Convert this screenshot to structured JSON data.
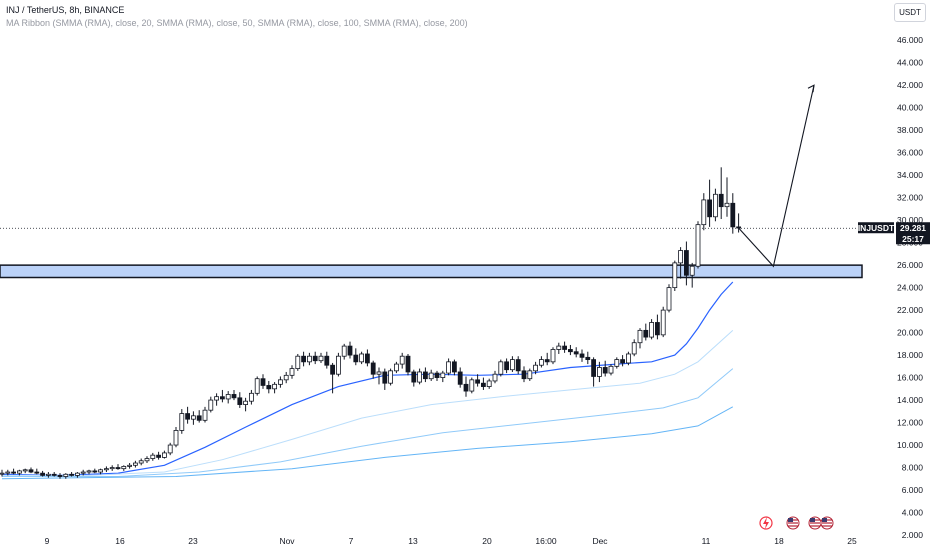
{
  "header": {
    "title": "INJ / TetherUS, 8h, BINANCE",
    "indicator": "MA Ribbon (SMMA (RMA), close, 20, SMMA (RMA), close, 50, SMMA (RMA), close, 100, SMMA (RMA), close, 200)",
    "currency": "USDT"
  },
  "price_tag": {
    "symbol": "INJUSDT",
    "price": "29.281",
    "countdown": "25:17"
  },
  "colors": {
    "up": "#131722",
    "down": "#131722",
    "ma20": "#2962ff",
    "ma50": "#bbdefb",
    "ma100": "#90caf9",
    "ma200": "#64b5f6",
    "zone": "#bbd2f8",
    "zone_border": "#131722"
  },
  "icons": [
    "bolt-icon",
    "us-flag-icon",
    "us-flag-icon",
    "us-flag-icon"
  ],
  "chart_data": {
    "type": "candlestick",
    "ylim": [
      2,
      47
    ],
    "y_ticks": [
      "2.000",
      "4.000",
      "6.000",
      "8.000",
      "10.000",
      "12.000",
      "14.000",
      "16.000",
      "18.000",
      "20.000",
      "22.000",
      "24.000",
      "26.000",
      "28.000",
      "30.000",
      "32.000",
      "34.000",
      "36.000",
      "38.000",
      "40.000",
      "42.000",
      "44.000",
      "46.000"
    ],
    "x_ticks": [
      "9",
      "16",
      "23",
      "Nov",
      "7",
      "13",
      "20",
      "16:00",
      "Dec",
      "11",
      "18",
      "25"
    ],
    "grid": false,
    "last_price": 29.281,
    "support_zone": [
      24.9,
      26.0
    ],
    "projection": [
      [
        0,
        29.3
      ],
      [
        6,
        25.9
      ],
      [
        13,
        42.0
      ]
    ],
    "candles": [
      {
        "o": 7.45,
        "h": 7.8,
        "l": 7.2,
        "c": 7.5
      },
      {
        "o": 7.5,
        "h": 7.8,
        "l": 7.3,
        "c": 7.6
      },
      {
        "o": 7.6,
        "h": 7.9,
        "l": 7.4,
        "c": 7.5
      },
      {
        "o": 7.5,
        "h": 7.8,
        "l": 7.3,
        "c": 7.7
      },
      {
        "o": 7.7,
        "h": 7.9,
        "l": 7.5,
        "c": 7.8
      },
      {
        "o": 7.8,
        "h": 8.0,
        "l": 7.5,
        "c": 7.6
      },
      {
        "o": 7.6,
        "h": 7.9,
        "l": 7.4,
        "c": 7.5
      },
      {
        "o": 7.5,
        "h": 7.7,
        "l": 7.2,
        "c": 7.3
      },
      {
        "o": 7.3,
        "h": 7.6,
        "l": 7.1,
        "c": 7.4
      },
      {
        "o": 7.4,
        "h": 7.6,
        "l": 7.2,
        "c": 7.3
      },
      {
        "o": 7.3,
        "h": 7.5,
        "l": 7.0,
        "c": 7.2
      },
      {
        "o": 7.2,
        "h": 7.5,
        "l": 7.0,
        "c": 7.4
      },
      {
        "o": 7.4,
        "h": 7.6,
        "l": 7.2,
        "c": 7.3
      },
      {
        "o": 7.3,
        "h": 7.6,
        "l": 7.1,
        "c": 7.5
      },
      {
        "o": 7.5,
        "h": 7.8,
        "l": 7.3,
        "c": 7.6
      },
      {
        "o": 7.6,
        "h": 7.8,
        "l": 7.4,
        "c": 7.7
      },
      {
        "o": 7.7,
        "h": 7.9,
        "l": 7.5,
        "c": 7.6
      },
      {
        "o": 7.6,
        "h": 7.9,
        "l": 7.4,
        "c": 7.8
      },
      {
        "o": 7.8,
        "h": 8.1,
        "l": 7.6,
        "c": 7.9
      },
      {
        "o": 7.9,
        "h": 8.2,
        "l": 7.7,
        "c": 8.0
      },
      {
        "o": 8.0,
        "h": 8.3,
        "l": 7.8,
        "c": 7.9
      },
      {
        "o": 7.9,
        "h": 8.2,
        "l": 7.7,
        "c": 8.1
      },
      {
        "o": 8.1,
        "h": 8.4,
        "l": 7.9,
        "c": 8.2
      },
      {
        "o": 8.2,
        "h": 8.6,
        "l": 8.0,
        "c": 8.4
      },
      {
        "o": 8.4,
        "h": 8.8,
        "l": 8.2,
        "c": 8.6
      },
      {
        "o": 8.6,
        "h": 9.0,
        "l": 8.4,
        "c": 8.8
      },
      {
        "o": 8.8,
        "h": 9.3,
        "l": 8.6,
        "c": 9.1
      },
      {
        "o": 9.1,
        "h": 9.4,
        "l": 8.7,
        "c": 8.9
      },
      {
        "o": 8.9,
        "h": 9.5,
        "l": 8.8,
        "c": 9.3
      },
      {
        "o": 9.3,
        "h": 10.2,
        "l": 9.1,
        "c": 10.0
      },
      {
        "o": 10.0,
        "h": 11.6,
        "l": 9.8,
        "c": 11.3
      },
      {
        "o": 11.3,
        "h": 13.2,
        "l": 11.0,
        "c": 12.8
      },
      {
        "o": 12.8,
        "h": 13.4,
        "l": 11.9,
        "c": 12.3
      },
      {
        "o": 12.3,
        "h": 13.0,
        "l": 11.8,
        "c": 12.6
      },
      {
        "o": 12.6,
        "h": 13.1,
        "l": 12.0,
        "c": 12.2
      },
      {
        "o": 12.2,
        "h": 13.4,
        "l": 12.0,
        "c": 13.1
      },
      {
        "o": 13.1,
        "h": 14.3,
        "l": 12.9,
        "c": 14.0
      },
      {
        "o": 14.0,
        "h": 14.6,
        "l": 13.5,
        "c": 14.3
      },
      {
        "o": 14.3,
        "h": 14.9,
        "l": 13.8,
        "c": 14.1
      },
      {
        "o": 14.1,
        "h": 14.8,
        "l": 13.7,
        "c": 14.5
      },
      {
        "o": 14.5,
        "h": 14.9,
        "l": 14.0,
        "c": 14.2
      },
      {
        "o": 14.2,
        "h": 14.7,
        "l": 13.3,
        "c": 13.6
      },
      {
        "o": 13.6,
        "h": 14.2,
        "l": 13.0,
        "c": 13.9
      },
      {
        "o": 13.9,
        "h": 14.9,
        "l": 13.6,
        "c": 14.6
      },
      {
        "o": 14.6,
        "h": 16.1,
        "l": 14.4,
        "c": 15.9
      },
      {
        "o": 15.9,
        "h": 16.3,
        "l": 15.0,
        "c": 15.3
      },
      {
        "o": 15.3,
        "h": 15.7,
        "l": 14.6,
        "c": 15.0
      },
      {
        "o": 15.0,
        "h": 15.6,
        "l": 14.6,
        "c": 15.4
      },
      {
        "o": 15.4,
        "h": 16.1,
        "l": 15.1,
        "c": 15.8
      },
      {
        "o": 15.8,
        "h": 16.5,
        "l": 15.5,
        "c": 16.2
      },
      {
        "o": 16.2,
        "h": 17.1,
        "l": 15.9,
        "c": 16.8
      },
      {
        "o": 16.8,
        "h": 18.1,
        "l": 16.6,
        "c": 17.9
      },
      {
        "o": 17.9,
        "h": 18.3,
        "l": 17.0,
        "c": 17.4
      },
      {
        "o": 17.4,
        "h": 18.2,
        "l": 17.1,
        "c": 17.9
      },
      {
        "o": 17.9,
        "h": 18.3,
        "l": 17.2,
        "c": 17.5
      },
      {
        "o": 17.5,
        "h": 18.2,
        "l": 17.3,
        "c": 17.9
      },
      {
        "o": 17.9,
        "h": 18.3,
        "l": 16.8,
        "c": 17.1
      },
      {
        "o": 17.1,
        "h": 17.3,
        "l": 14.6,
        "c": 16.3
      },
      {
        "o": 16.3,
        "h": 18.2,
        "l": 16.1,
        "c": 17.9
      },
      {
        "o": 17.9,
        "h": 19.0,
        "l": 17.6,
        "c": 18.8
      },
      {
        "o": 18.8,
        "h": 19.2,
        "l": 17.7,
        "c": 18.0
      },
      {
        "o": 18.0,
        "h": 18.6,
        "l": 17.1,
        "c": 17.4
      },
      {
        "o": 17.4,
        "h": 18.3,
        "l": 17.2,
        "c": 18.1
      },
      {
        "o": 18.1,
        "h": 18.5,
        "l": 17.0,
        "c": 17.3
      },
      {
        "o": 17.3,
        "h": 17.5,
        "l": 15.9,
        "c": 16.3
      },
      {
        "o": 16.3,
        "h": 16.9,
        "l": 15.4,
        "c": 16.5
      },
      {
        "o": 16.5,
        "h": 16.8,
        "l": 14.9,
        "c": 15.5
      },
      {
        "o": 15.5,
        "h": 16.8,
        "l": 15.3,
        "c": 16.6
      },
      {
        "o": 16.6,
        "h": 17.4,
        "l": 16.4,
        "c": 17.2
      },
      {
        "o": 17.2,
        "h": 18.2,
        "l": 16.8,
        "c": 17.9
      },
      {
        "o": 17.9,
        "h": 18.1,
        "l": 16.2,
        "c": 16.5
      },
      {
        "o": 16.5,
        "h": 16.7,
        "l": 15.2,
        "c": 15.6
      },
      {
        "o": 15.6,
        "h": 16.8,
        "l": 15.4,
        "c": 16.5
      },
      {
        "o": 16.5,
        "h": 16.9,
        "l": 15.6,
        "c": 15.9
      },
      {
        "o": 15.9,
        "h": 16.7,
        "l": 15.7,
        "c": 16.4
      },
      {
        "o": 16.4,
        "h": 16.6,
        "l": 15.7,
        "c": 16.0
      },
      {
        "o": 16.0,
        "h": 16.6,
        "l": 15.6,
        "c": 16.4
      },
      {
        "o": 16.4,
        "h": 17.7,
        "l": 16.2,
        "c": 17.4
      },
      {
        "o": 17.4,
        "h": 17.6,
        "l": 16.2,
        "c": 16.5
      },
      {
        "o": 16.5,
        "h": 16.9,
        "l": 15.1,
        "c": 15.4
      },
      {
        "o": 15.4,
        "h": 16.1,
        "l": 14.3,
        "c": 14.8
      },
      {
        "o": 14.8,
        "h": 16.0,
        "l": 14.6,
        "c": 15.8
      },
      {
        "o": 15.8,
        "h": 16.3,
        "l": 15.2,
        "c": 15.5
      },
      {
        "o": 15.5,
        "h": 16.0,
        "l": 14.9,
        "c": 15.2
      },
      {
        "o": 15.2,
        "h": 15.9,
        "l": 15.0,
        "c": 15.7
      },
      {
        "o": 15.7,
        "h": 16.6,
        "l": 15.5,
        "c": 16.3
      },
      {
        "o": 16.3,
        "h": 17.6,
        "l": 16.1,
        "c": 17.4
      },
      {
        "o": 17.4,
        "h": 17.7,
        "l": 16.4,
        "c": 16.7
      },
      {
        "o": 16.7,
        "h": 17.9,
        "l": 16.5,
        "c": 17.6
      },
      {
        "o": 17.6,
        "h": 17.9,
        "l": 16.3,
        "c": 16.6
      },
      {
        "o": 16.6,
        "h": 17.0,
        "l": 15.6,
        "c": 15.9
      },
      {
        "o": 15.9,
        "h": 16.8,
        "l": 15.7,
        "c": 16.6
      },
      {
        "o": 16.6,
        "h": 17.4,
        "l": 16.3,
        "c": 17.1
      },
      {
        "o": 17.1,
        "h": 17.9,
        "l": 16.9,
        "c": 17.6
      },
      {
        "o": 17.6,
        "h": 18.2,
        "l": 17.1,
        "c": 17.4
      },
      {
        "o": 17.4,
        "h": 18.7,
        "l": 17.2,
        "c": 18.5
      },
      {
        "o": 18.5,
        "h": 19.1,
        "l": 18.1,
        "c": 18.8
      },
      {
        "o": 18.8,
        "h": 19.2,
        "l": 18.2,
        "c": 18.5
      },
      {
        "o": 18.5,
        "h": 18.9,
        "l": 18.0,
        "c": 18.3
      },
      {
        "o": 18.3,
        "h": 18.7,
        "l": 17.8,
        "c": 18.1
      },
      {
        "o": 18.1,
        "h": 18.5,
        "l": 17.4,
        "c": 17.8
      },
      {
        "o": 17.8,
        "h": 18.3,
        "l": 17.2,
        "c": 17.6
      },
      {
        "o": 17.6,
        "h": 17.8,
        "l": 15.2,
        "c": 16.1
      },
      {
        "o": 16.1,
        "h": 17.4,
        "l": 15.6,
        "c": 16.9
      },
      {
        "o": 16.9,
        "h": 17.5,
        "l": 16.1,
        "c": 16.4
      },
      {
        "o": 16.4,
        "h": 17.2,
        "l": 16.2,
        "c": 17.0
      },
      {
        "o": 17.0,
        "h": 17.8,
        "l": 16.8,
        "c": 17.6
      },
      {
        "o": 17.6,
        "h": 18.0,
        "l": 17.0,
        "c": 17.3
      },
      {
        "o": 17.3,
        "h": 18.3,
        "l": 17.1,
        "c": 18.1
      },
      {
        "o": 18.1,
        "h": 19.4,
        "l": 17.9,
        "c": 19.1
      },
      {
        "o": 19.1,
        "h": 20.4,
        "l": 18.6,
        "c": 20.2
      },
      {
        "o": 20.2,
        "h": 20.8,
        "l": 19.3,
        "c": 19.6
      },
      {
        "o": 19.6,
        "h": 21.2,
        "l": 19.4,
        "c": 20.9
      },
      {
        "o": 20.9,
        "h": 21.6,
        "l": 19.4,
        "c": 19.8
      },
      {
        "o": 19.8,
        "h": 22.3,
        "l": 19.6,
        "c": 22.0
      },
      {
        "o": 22.0,
        "h": 24.3,
        "l": 21.8,
        "c": 24.0
      },
      {
        "o": 24.0,
        "h": 26.4,
        "l": 23.7,
        "c": 26.2
      },
      {
        "o": 26.2,
        "h": 27.6,
        "l": 24.8,
        "c": 27.3
      },
      {
        "o": 27.3,
        "h": 28.1,
        "l": 24.2,
        "c": 25.1
      },
      {
        "o": 25.1,
        "h": 26.2,
        "l": 24.0,
        "c": 25.9
      },
      {
        "o": 25.9,
        "h": 29.9,
        "l": 25.7,
        "c": 29.6
      },
      {
        "o": 29.6,
        "h": 32.4,
        "l": 29.1,
        "c": 31.8
      },
      {
        "o": 31.8,
        "h": 33.6,
        "l": 29.4,
        "c": 30.3
      },
      {
        "o": 30.3,
        "h": 32.8,
        "l": 29.9,
        "c": 32.3
      },
      {
        "o": 32.3,
        "h": 34.7,
        "l": 30.1,
        "c": 31.2
      },
      {
        "o": 31.2,
        "h": 33.8,
        "l": 30.3,
        "c": 31.5
      },
      {
        "o": 31.5,
        "h": 32.4,
        "l": 28.8,
        "c": 29.4
      },
      {
        "o": 29.4,
        "h": 30.6,
        "l": 28.9,
        "c": 29.3
      }
    ],
    "ma_series": [
      {
        "period": 20,
        "color": "#2962ff",
        "values": [
          [
            0,
            7.4
          ],
          [
            10,
            7.3
          ],
          [
            20,
            7.5
          ],
          [
            28,
            8.2
          ],
          [
            35,
            9.8
          ],
          [
            42,
            11.6
          ],
          [
            50,
            13.6
          ],
          [
            58,
            15.2
          ],
          [
            66,
            16.2
          ],
          [
            74,
            16.3
          ],
          [
            82,
            16.2
          ],
          [
            90,
            16.3
          ],
          [
            98,
            16.9
          ],
          [
            106,
            17.2
          ],
          [
            112,
            17.4
          ],
          [
            116,
            18.0
          ],
          [
            118,
            19.0
          ],
          [
            120,
            20.4
          ],
          [
            122,
            22.0
          ],
          [
            124,
            23.4
          ],
          [
            126,
            24.5
          ]
        ]
      },
      {
        "period": 50,
        "color": "#bbdefb",
        "values": [
          [
            0,
            7.3
          ],
          [
            15,
            7.3
          ],
          [
            28,
            7.6
          ],
          [
            38,
            8.7
          ],
          [
            50,
            10.5
          ],
          [
            62,
            12.4
          ],
          [
            74,
            13.6
          ],
          [
            86,
            14.3
          ],
          [
            98,
            14.9
          ],
          [
            110,
            15.5
          ],
          [
            116,
            16.3
          ],
          [
            120,
            17.4
          ],
          [
            126,
            20.2
          ]
        ]
      },
      {
        "period": 100,
        "color": "#90caf9",
        "values": [
          [
            0,
            7.2
          ],
          [
            20,
            7.2
          ],
          [
            34,
            7.6
          ],
          [
            48,
            8.5
          ],
          [
            62,
            9.9
          ],
          [
            76,
            11.1
          ],
          [
            90,
            11.9
          ],
          [
            104,
            12.7
          ],
          [
            114,
            13.3
          ],
          [
            120,
            14.2
          ],
          [
            126,
            16.8
          ]
        ]
      },
      {
        "period": 200,
        "color": "#64b5f6",
        "values": [
          [
            0,
            7.0
          ],
          [
            30,
            7.2
          ],
          [
            50,
            7.9
          ],
          [
            66,
            8.9
          ],
          [
            82,
            9.7
          ],
          [
            98,
            10.3
          ],
          [
            112,
            11.0
          ],
          [
            120,
            11.7
          ],
          [
            126,
            13.4
          ]
        ]
      }
    ]
  }
}
